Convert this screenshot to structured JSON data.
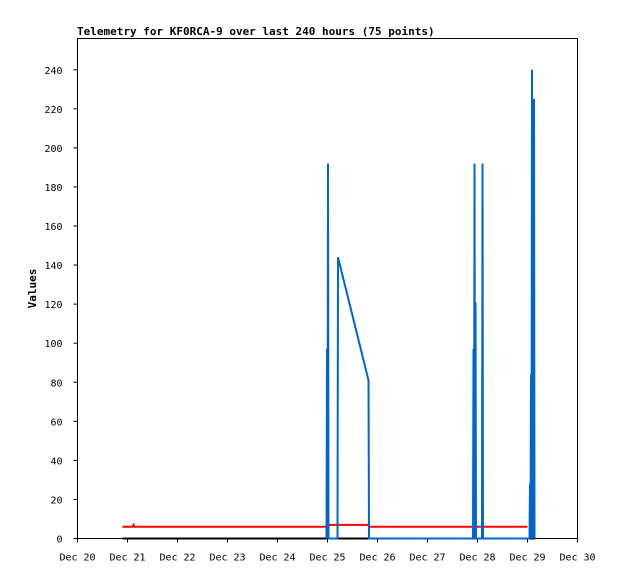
{
  "chart_data": {
    "type": "line",
    "title": "Telemetry for KF0RCA-9 over last 240 hours (75 points)",
    "xlabel": "",
    "ylabel": "Values",
    "x_tick_labels": [
      "Dec 20",
      "Dec 21",
      "Dec 22",
      "Dec 23",
      "Dec 24",
      "Dec 25",
      "Dec 26",
      "Dec 27",
      "Dec 28",
      "Dec 29",
      "Dec 30"
    ],
    "y_ticks": [
      0,
      20,
      40,
      60,
      80,
      100,
      120,
      140,
      160,
      180,
      200,
      220,
      240
    ],
    "xlim": [
      0,
      10
    ],
    "ylim": [
      0,
      256
    ],
    "grid": false,
    "legend": "none",
    "series": [
      {
        "color": "#0066cc",
        "points": [
          [
            4.98,
            0
          ],
          [
            4.99,
            97
          ],
          [
            5.0,
            0
          ],
          [
            5.01,
            192
          ],
          [
            5.02,
            0
          ],
          [
            5.2,
            0
          ],
          [
            5.21,
            144
          ],
          [
            5.82,
            81
          ],
          [
            5.83,
            0
          ],
          [
            7.91,
            0
          ],
          [
            7.92,
            97
          ],
          [
            7.93,
            0
          ],
          [
            7.94,
            192
          ],
          [
            7.95,
            0
          ],
          [
            7.96,
            121
          ],
          [
            7.97,
            0
          ],
          [
            8.09,
            0
          ],
          [
            8.1,
            192
          ],
          [
            8.11,
            0
          ],
          [
            9.04,
            0
          ],
          [
            9.05,
            28
          ],
          [
            9.06,
            0
          ],
          [
            9.07,
            84
          ],
          [
            9.08,
            0
          ],
          [
            9.09,
            240
          ],
          [
            9.1,
            0
          ],
          [
            9.11,
            113
          ],
          [
            9.12,
            0
          ],
          [
            9.13,
            225
          ],
          [
            9.14,
            0
          ]
        ]
      },
      {
        "color": "#ff0000",
        "points": [
          [
            0.9,
            6
          ],
          [
            1.1,
            6
          ],
          [
            1.12,
            7
          ],
          [
            1.14,
            6
          ],
          [
            5.0,
            6
          ],
          [
            5.05,
            7
          ],
          [
            5.8,
            7
          ],
          [
            5.85,
            6
          ],
          [
            9.0,
            6
          ]
        ]
      },
      {
        "color": "#000000",
        "points": [
          [
            0.9,
            0
          ],
          [
            9.15,
            0
          ]
        ]
      }
    ]
  }
}
